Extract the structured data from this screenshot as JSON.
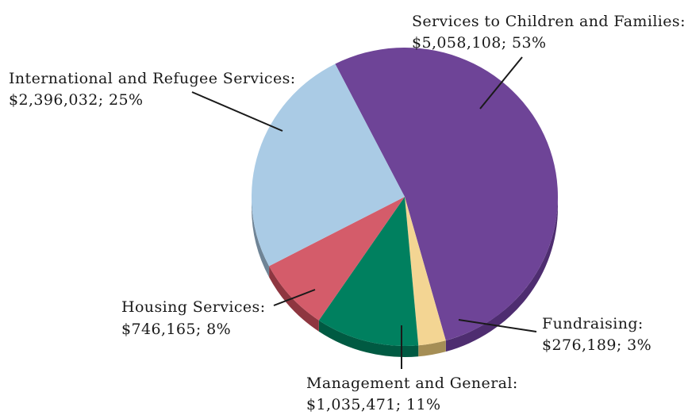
{
  "chart_data": {
    "type": "pie",
    "title": "",
    "slices": [
      {
        "label": "Services to Children and Families:",
        "value_text": "$5,058,108; 53%",
        "value": 5058108,
        "percent": 53,
        "color": "#6E4497",
        "side": "#4E2D70"
      },
      {
        "label": "Fundraising:",
        "value_text": "$276,189; 3%",
        "value": 276189,
        "percent": 3,
        "color": "#F3D593",
        "side": "#A58E55"
      },
      {
        "label": "Management and General:",
        "value_text": "$1,035,471; 11%",
        "value": 1035471,
        "percent": 11,
        "color": "#00805F",
        "side": "#005A42"
      },
      {
        "label": "Housing Services:",
        "value_text": "$746,165; 8%",
        "value": 746165,
        "percent": 8,
        "color": "#D45C6A",
        "side": "#8E3640"
      },
      {
        "label": "International and Refugee Services:",
        "value_text": "$2,396,032; 25%",
        "value": 2396032,
        "percent": 25,
        "color": "#AACBE5",
        "side": "#6F8496"
      }
    ]
  }
}
